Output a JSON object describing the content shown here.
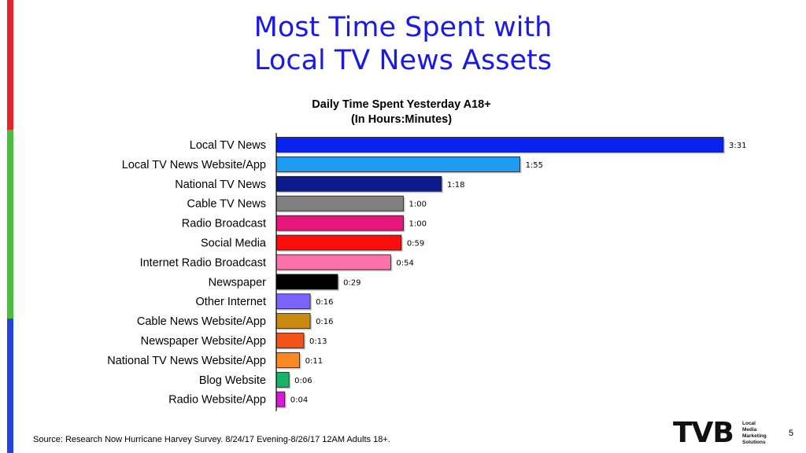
{
  "slide": {
    "title_line1": "Most Time Spent with",
    "title_line2": "Local TV News Assets",
    "source": "Source: Research Now Hurricane Harvey Survey. 8/24/17 Evening-8/26/17 12AM Adults 18+.",
    "page_number": "5",
    "stripe_colors": [
      "#e8242b",
      "#4bbd3d",
      "#2145de"
    ]
  },
  "logo": {
    "mark": "TVB",
    "words": [
      "Local",
      "Media",
      "Marketing",
      "Solutions"
    ]
  },
  "chart_data": {
    "type": "bar",
    "orientation": "horizontal",
    "title": "Daily Time Spent Yesterday A18+",
    "subtitle": "(In Hours:Minutes)",
    "value_unit": "minutes",
    "categories": [
      "Local TV News",
      "Local TV News Website/App",
      "National TV News",
      "Cable TV News",
      "Radio Broadcast",
      "Social Media",
      "Internet Radio Broadcast",
      "Newspaper",
      "Other Internet",
      "Cable News Website/App",
      "Newspaper Website/App",
      "National TV News Website/App",
      "Blog Website",
      "Radio Website/App"
    ],
    "values": [
      211,
      115,
      78,
      60,
      60,
      59,
      54,
      29,
      16,
      16,
      13,
      11,
      6,
      4
    ],
    "data_labels": [
      "3:31",
      "1:55",
      "1:18",
      "1:00",
      "1:00",
      "0:59",
      "0:54",
      "0:29",
      "0:16",
      "0:16",
      "0:13",
      "0:11",
      "0:06",
      "0:04"
    ],
    "colors": [
      "#0a22f0",
      "#1e9cf2",
      "#0d1a8c",
      "#808080",
      "#e8157d",
      "#fc0d0d",
      "#fc72a8",
      "#000000",
      "#7d61ff",
      "#c98a0e",
      "#f2511a",
      "#fb8923",
      "#19b26a",
      "#d61bd6"
    ],
    "xlim": [
      0,
      211
    ],
    "grid": false,
    "legend": "none"
  }
}
